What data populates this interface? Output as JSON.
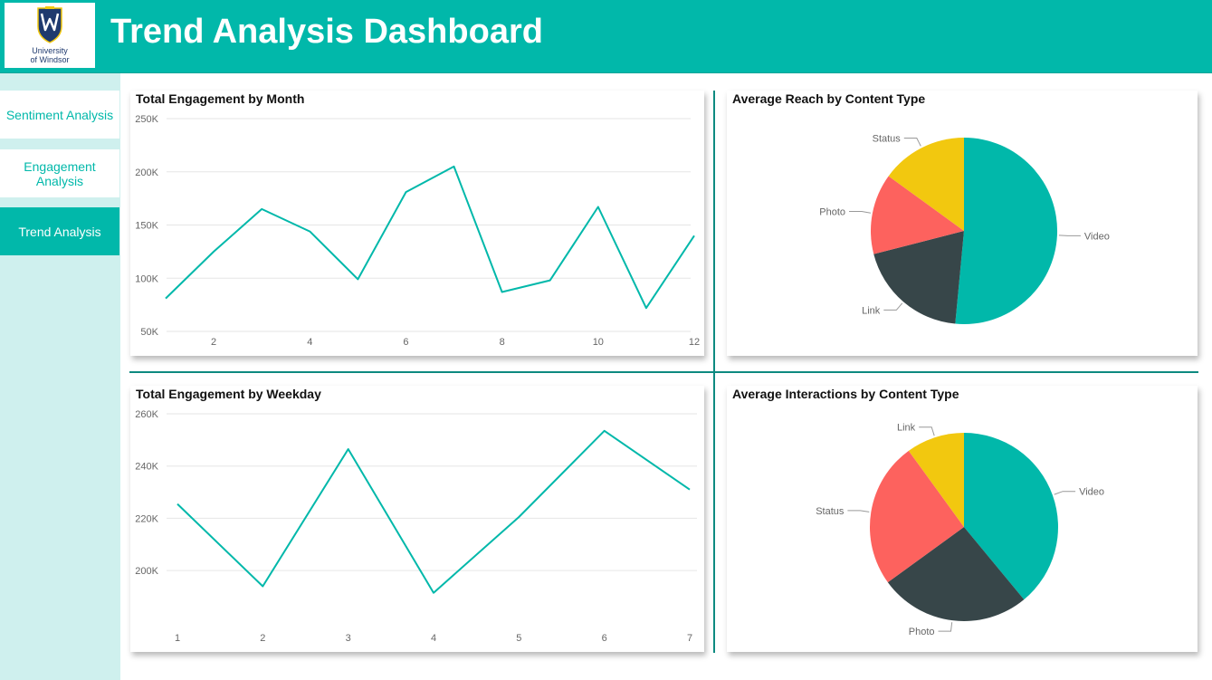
{
  "header": {
    "title": "Trend Analysis Dashboard",
    "logo_line1": "University",
    "logo_line2": "of Windsor",
    "background": "#01b8aa"
  },
  "sidebar": {
    "items": [
      {
        "label": "Sentiment Analysis",
        "active": false
      },
      {
        "label": "Engagement Analysis",
        "active": false
      },
      {
        "label": "Trend Analysis",
        "active": true
      }
    ]
  },
  "colors": {
    "teal": "#01b8aa",
    "dark": "#374649",
    "red": "#fd625e",
    "yellow": "#f2c80f",
    "grid": "#e6e6e6",
    "axis_text": "#666666"
  },
  "chart_data": [
    {
      "id": "month",
      "type": "line",
      "title": "Total Engagement by Month",
      "x": [
        1,
        2,
        3,
        4,
        5,
        6,
        7,
        8,
        9,
        10,
        11,
        12
      ],
      "values": [
        81000,
        125000,
        165000,
        144000,
        99000,
        181000,
        205000,
        87000,
        98000,
        167000,
        72000,
        140000
      ],
      "xticks": [
        2,
        4,
        6,
        8,
        10,
        12
      ],
      "yticks": [
        50000,
        100000,
        150000,
        200000,
        250000
      ],
      "ytick_labels": [
        "50K",
        "100K",
        "150K",
        "200K",
        "250K"
      ],
      "ylim": [
        50000,
        250000
      ],
      "xlim": [
        1,
        12
      ],
      "grid": true
    },
    {
      "id": "weekday",
      "type": "line",
      "title": "Total Engagement by Weekday",
      "x": [
        1,
        2,
        3,
        4,
        5,
        6,
        7
      ],
      "values": [
        225500,
        194000,
        246500,
        191500,
        220500,
        253500,
        231000
      ],
      "xticks": [
        1,
        2,
        3,
        4,
        5,
        6,
        7
      ],
      "yticks": [
        200000,
        220000,
        240000,
        260000
      ],
      "ytick_labels": [
        "200K",
        "220K",
        "240K",
        "260K"
      ],
      "ylim": [
        190000,
        260000
      ],
      "xlim": [
        1,
        7
      ],
      "grid": true
    },
    {
      "id": "reach",
      "type": "pie",
      "title": "Average Reach by Content Type",
      "slices": [
        {
          "label": "Video",
          "value": 51.5,
          "color": "#01b8aa"
        },
        {
          "label": "Link",
          "value": 19.5,
          "color": "#374649"
        },
        {
          "label": "Photo",
          "value": 14,
          "color": "#fd625e"
        },
        {
          "label": "Status",
          "value": 15,
          "color": "#f2c80f"
        }
      ]
    },
    {
      "id": "interactions",
      "type": "pie",
      "title": "Average Interactions by Content Type",
      "slices": [
        {
          "label": "Video",
          "value": 39,
          "color": "#01b8aa"
        },
        {
          "label": "Photo",
          "value": 26,
          "color": "#374649"
        },
        {
          "label": "Status",
          "value": 25,
          "color": "#fd625e"
        },
        {
          "label": "Link",
          "value": 10,
          "color": "#f2c80f"
        }
      ]
    }
  ]
}
